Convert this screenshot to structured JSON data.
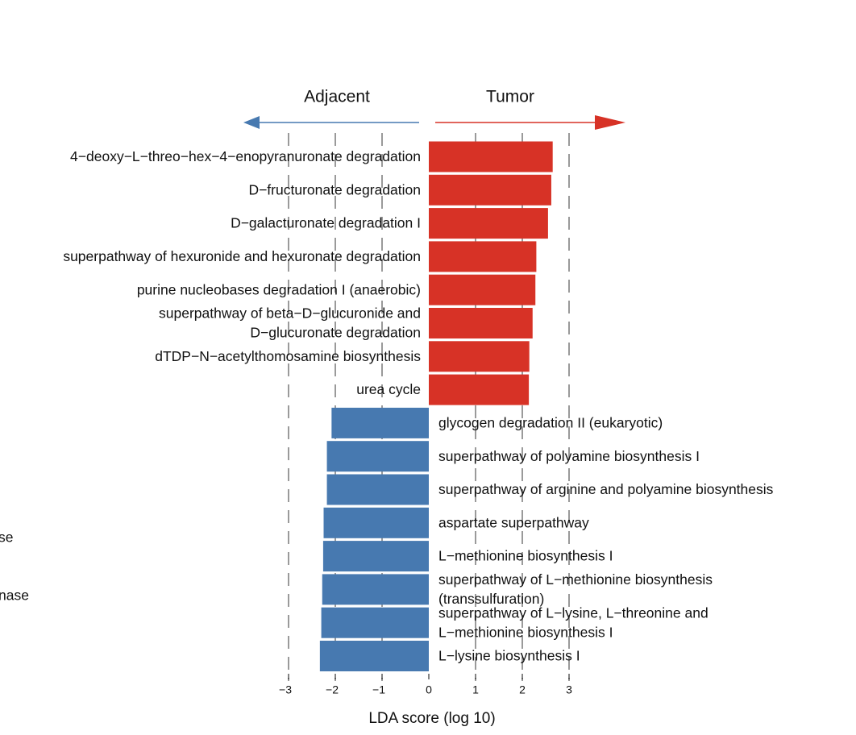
{
  "chart_data": {
    "type": "bar",
    "orientation": "horizontal",
    "title": "",
    "xlabel": "LDA score (log 10)",
    "ylabel": "",
    "xlim": [
      -3,
      3
    ],
    "xticks": [
      "-3",
      "-2",
      "-1",
      "0",
      "1",
      "2",
      "3"
    ],
    "grid": "dashed vertical lines at x = -3, -2, -1, 1, 2, 3",
    "groups": {
      "left": {
        "name": "Adjacent",
        "color": "#4779B0"
      },
      "right": {
        "name": "Tumor",
        "color": "#D73226"
      }
    },
    "series": [
      {
        "name": "Tumor",
        "color": "#D73226",
        "labels": [
          [
            "4−deoxy−L−threo−hex−4−enopyranuronate degradation"
          ],
          [
            "D−fructuronate degradation"
          ],
          [
            "D−galacturonate degradation I"
          ],
          [
            "superpathway of hexuronide and hexuronate degradation"
          ],
          [
            "purine nucleobases degradation I (anaerobic)"
          ],
          [
            "superpathway of beta−D−glucuronide and",
            "D−glucuronate degradation"
          ],
          [
            "dTDP−N−acetylthomosamine biosynthesis"
          ],
          [
            "urea cycle"
          ]
        ],
        "values": [
          2.65,
          2.62,
          2.55,
          2.3,
          2.28,
          2.22,
          2.15,
          2.14
        ]
      },
      {
        "name": "Adjacent",
        "color": "#4779B0",
        "labels": [
          [
            "glycogen degradation II (eukaryotic)"
          ],
          [
            "superpathway of polyamine biosynthesis I"
          ],
          [
            "superpathway of arginine and polyamine biosynthesis"
          ],
          [
            "aspartate superpathway"
          ],
          [
            "L−methionine biosynthesis I"
          ],
          [
            "superpathway of L−methionine biosynthesis",
            "(transsulfuration)"
          ],
          [
            "superpathway of L−lysine, L−threonine and",
            "L−methionine biosynthesis I"
          ],
          [
            "L−lysine biosynthesis I"
          ]
        ],
        "values": [
          -2.08,
          -2.18,
          -2.18,
          -2.25,
          -2.26,
          -2.28,
          -2.3,
          -2.33
        ]
      }
    ],
    "cropped_left_labels": [
      "se",
      "nase"
    ]
  }
}
